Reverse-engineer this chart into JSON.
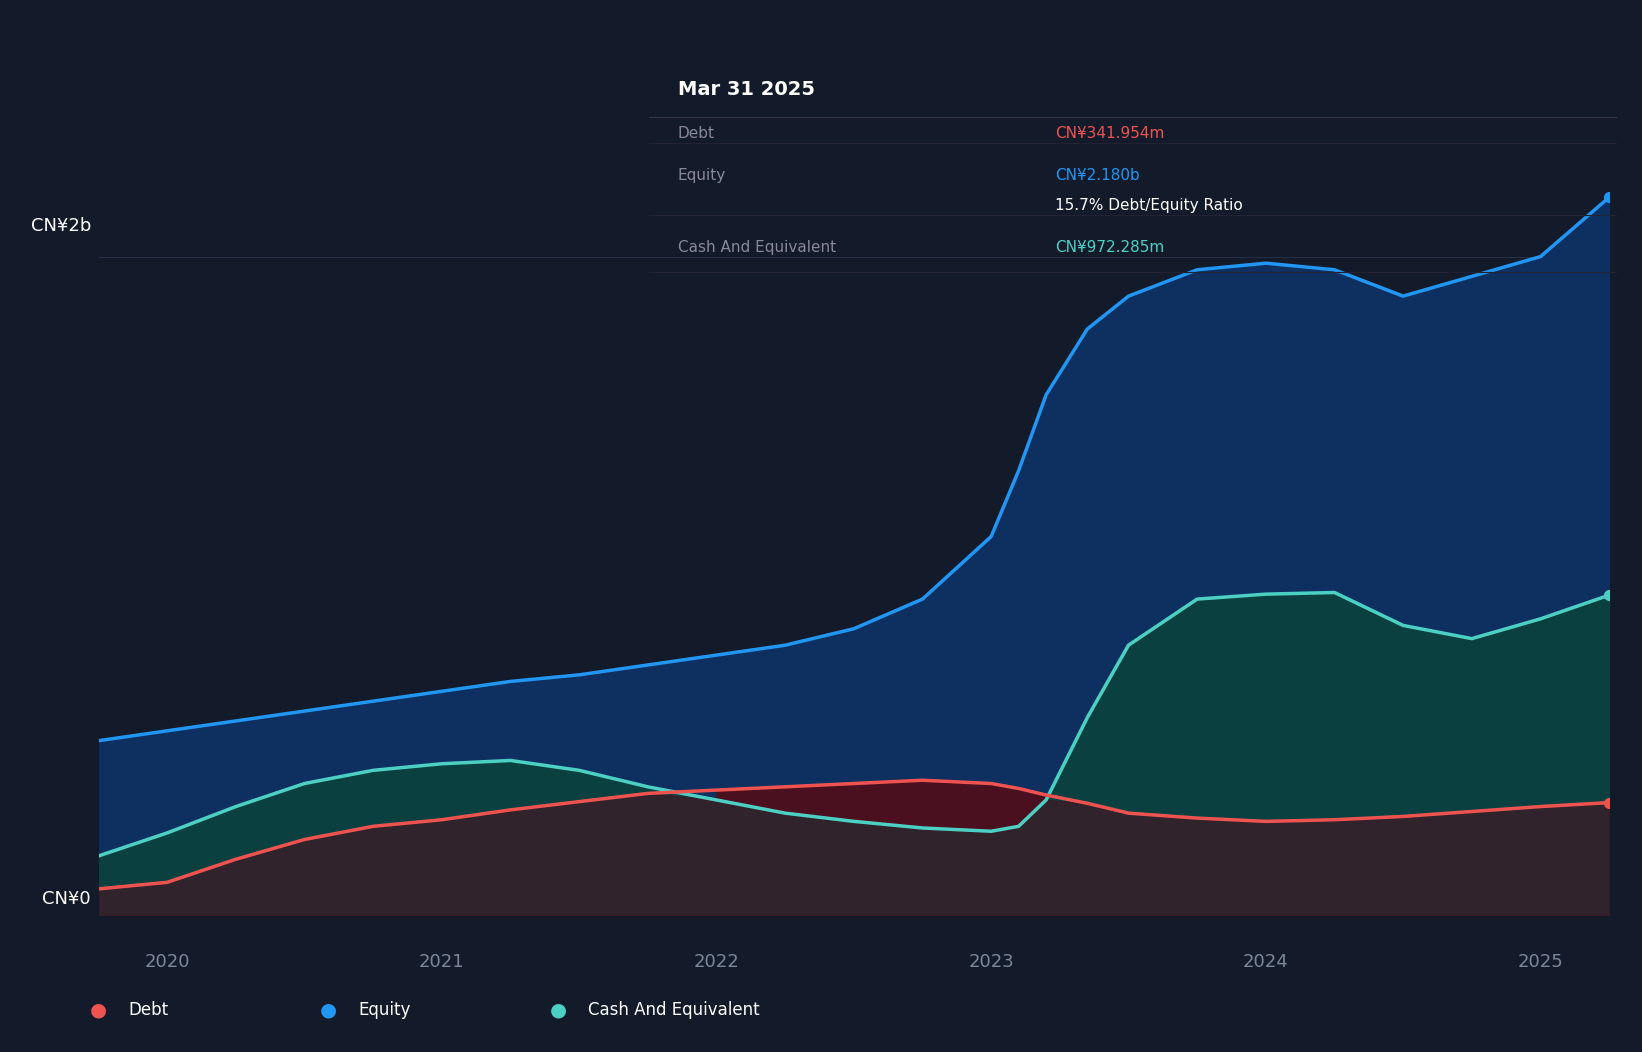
{
  "bg_color": "#131A2A",
  "plot_bg_color": "#131A2A",
  "equity_color": "#2196F3",
  "equity_fill_color": "#0D3060",
  "debt_color": "#EF5350",
  "debt_fill_color": "#4A1020",
  "cash_color": "#4DD0C4",
  "cash_fill_color": "#0B4040",
  "grid_color": "#252F45",
  "x_data": [
    2019.75,
    2020.0,
    2020.25,
    2020.5,
    2020.75,
    2021.0,
    2021.25,
    2021.5,
    2021.75,
    2022.0,
    2022.25,
    2022.5,
    2022.75,
    2023.0,
    2023.1,
    2023.2,
    2023.35,
    2023.5,
    2023.75,
    2024.0,
    2024.25,
    2024.5,
    2024.75,
    2025.0,
    2025.25
  ],
  "equity_data": [
    530,
    560,
    590,
    620,
    650,
    680,
    710,
    730,
    760,
    790,
    820,
    870,
    960,
    1150,
    1350,
    1580,
    1780,
    1880,
    1960,
    1980,
    1960,
    1880,
    1940,
    2000,
    2180
  ],
  "debt_data": [
    80,
    100,
    170,
    230,
    270,
    290,
    320,
    345,
    370,
    380,
    390,
    400,
    410,
    400,
    385,
    365,
    340,
    310,
    295,
    285,
    290,
    300,
    315,
    330,
    342
  ],
  "cash_data": [
    180,
    250,
    330,
    400,
    440,
    460,
    470,
    440,
    390,
    350,
    310,
    285,
    265,
    255,
    270,
    350,
    600,
    820,
    960,
    975,
    980,
    880,
    840,
    900,
    972
  ],
  "scale": 1000000,
  "ymax": 2300,
  "ytick_labels": [
    "CN¥0",
    "CN¥2b"
  ],
  "ytick_values": [
    0,
    2000
  ],
  "xlabel_values": [
    2020.0,
    2021.0,
    2022.0,
    2023.0,
    2024.0,
    2025.0
  ],
  "xlabel_labels": [
    "2020",
    "2021",
    "2022",
    "2023",
    "2024",
    "2025"
  ],
  "legend_items": [
    {
      "label": "Debt",
      "color": "#EF5350"
    },
    {
      "label": "Equity",
      "color": "#2196F3"
    },
    {
      "label": "Cash And Equivalent",
      "color": "#4DD0C4"
    }
  ],
  "tooltip_title": "Mar 31 2025",
  "tooltip_rows": [
    {
      "label": "Debt",
      "value": "CN¥341.954m",
      "value_color": "#EF5350",
      "separator_above": true
    },
    {
      "label": "Equity",
      "value": "CN¥2.180b",
      "value_color": "#2196F3",
      "separator_above": true
    },
    {
      "label": "",
      "value": "15.7% Debt/Equity Ratio",
      "value_color": "#ffffff",
      "separator_above": false
    },
    {
      "label": "Cash And Equivalent",
      "value": "CN¥972.285m",
      "value_color": "#4DD0C4",
      "separator_above": true
    }
  ]
}
